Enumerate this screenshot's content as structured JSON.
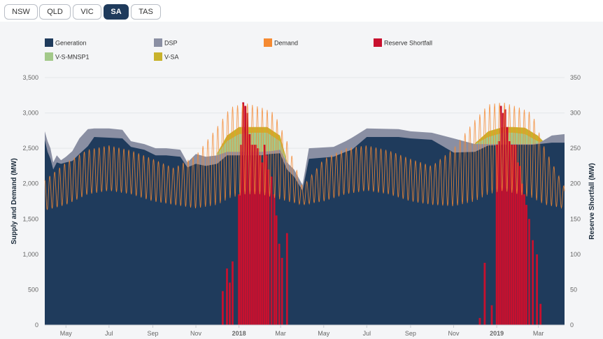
{
  "tabs": [
    {
      "label": "NSW",
      "active": false
    },
    {
      "label": "QLD",
      "active": false
    },
    {
      "label": "VIC",
      "active": false
    },
    {
      "label": "SA",
      "active": true
    },
    {
      "label": "TAS",
      "active": false
    }
  ],
  "colors": {
    "generation": "#1f3b5c",
    "dsp": "#8a8fa3",
    "demand": "#f58a32",
    "shortfall": "#c8102e",
    "vs_mnsp1": "#a3c98a",
    "vsa": "#c8b22c"
  },
  "chart_data": {
    "type": "area",
    "legend": [
      "Generation",
      "DSP",
      "Demand",
      "Reserve Shortfall",
      "V-S-MNSP1",
      "V-SA"
    ],
    "legend_position": "top-left",
    "ylabel": "Supply and Demand (MW)",
    "y2label": "Reserve Shortfall (MW)",
    "ylim": [
      0,
      3500
    ],
    "y2lim": [
      0,
      350
    ],
    "yticks": [
      "0",
      "500",
      "1,000",
      "1,500",
      "2,000",
      "2,500",
      "3,000",
      "3,500"
    ],
    "y2ticks": [
      "0",
      "50",
      "100",
      "150",
      "200",
      "250",
      "300",
      "350"
    ],
    "xlim": [
      "2017-04-01",
      "2019-04-07"
    ],
    "xticks": [
      {
        "date": "2017-05-01",
        "label": "May",
        "bold": false
      },
      {
        "date": "2017-07-01",
        "label": "Jul",
        "bold": false
      },
      {
        "date": "2017-09-01",
        "label": "Sep",
        "bold": false
      },
      {
        "date": "2017-11-01",
        "label": "Nov",
        "bold": false
      },
      {
        "date": "2018-01-01",
        "label": "2018",
        "bold": true
      },
      {
        "date": "2018-03-01",
        "label": "Mar",
        "bold": false
      },
      {
        "date": "2018-05-01",
        "label": "May",
        "bold": false
      },
      {
        "date": "2018-07-01",
        "label": "Jul",
        "bold": false
      },
      {
        "date": "2018-09-01",
        "label": "Sep",
        "bold": false
      },
      {
        "date": "2018-11-01",
        "label": "Nov",
        "bold": false
      },
      {
        "date": "2019-01-01",
        "label": "2019",
        "bold": true
      },
      {
        "date": "2019-03-01",
        "label": "Mar",
        "bold": false
      }
    ],
    "generation": [
      [
        "2017-04-01",
        2620
      ],
      [
        "2017-04-05",
        2450
      ],
      [
        "2017-04-09",
        2350
      ],
      [
        "2017-04-13",
        2200
      ],
      [
        "2017-04-18",
        2300
      ],
      [
        "2017-04-24",
        2280
      ],
      [
        "2017-05-01",
        2300
      ],
      [
        "2017-05-10",
        2320
      ],
      [
        "2017-05-20",
        2420
      ],
      [
        "2017-06-01",
        2530
      ],
      [
        "2017-06-10",
        2660
      ],
      [
        "2017-07-01",
        2650
      ],
      [
        "2017-07-20",
        2640
      ],
      [
        "2017-08-01",
        2520
      ],
      [
        "2017-08-20",
        2480
      ],
      [
        "2017-09-05",
        2400
      ],
      [
        "2017-09-20",
        2400
      ],
      [
        "2017-10-10",
        2380
      ],
      [
        "2017-10-20",
        2230
      ],
      [
        "2017-11-01",
        2280
      ],
      [
        "2017-11-15",
        2250
      ],
      [
        "2017-12-01",
        2280
      ],
      [
        "2017-12-15",
        2400
      ],
      [
        "2017-12-31",
        2400
      ],
      [
        "2018-02-01",
        2400
      ],
      [
        "2018-02-15",
        2420
      ],
      [
        "2018-02-28",
        2430
      ],
      [
        "2018-03-10",
        2200
      ],
      [
        "2018-03-20",
        2100
      ],
      [
        "2018-04-01",
        1900
      ],
      [
        "2018-04-10",
        2350
      ],
      [
        "2018-05-15",
        2380
      ],
      [
        "2018-06-01",
        2450
      ],
      [
        "2018-06-10",
        2480
      ],
      [
        "2018-07-01",
        2660
      ],
      [
        "2018-08-15",
        2660
      ],
      [
        "2018-09-01",
        2640
      ],
      [
        "2018-10-01",
        2620
      ],
      [
        "2018-11-01",
        2440
      ],
      [
        "2018-12-01",
        2450
      ],
      [
        "2018-12-20",
        2540
      ],
      [
        "2019-01-15",
        2550
      ],
      [
        "2019-02-01",
        2550
      ],
      [
        "2019-02-20",
        2550
      ],
      [
        "2019-03-01",
        2560
      ],
      [
        "2019-03-20",
        2580
      ],
      [
        "2019-04-07",
        2580
      ]
    ],
    "dsp": [
      [
        "2017-04-01",
        2740
      ],
      [
        "2017-04-05",
        2600
      ],
      [
        "2017-04-09",
        2500
      ],
      [
        "2017-04-13",
        2300
      ],
      [
        "2017-04-18",
        2400
      ],
      [
        "2017-04-24",
        2330
      ],
      [
        "2017-05-01",
        2380
      ],
      [
        "2017-05-10",
        2460
      ],
      [
        "2017-05-20",
        2640
      ],
      [
        "2017-06-01",
        2770
      ],
      [
        "2017-06-10",
        2780
      ],
      [
        "2017-07-01",
        2780
      ],
      [
        "2017-07-20",
        2760
      ],
      [
        "2017-08-01",
        2600
      ],
      [
        "2017-08-20",
        2560
      ],
      [
        "2017-09-05",
        2500
      ],
      [
        "2017-09-20",
        2500
      ],
      [
        "2017-10-10",
        2480
      ],
      [
        "2017-10-20",
        2300
      ],
      [
        "2017-11-01",
        2420
      ],
      [
        "2017-11-15",
        2380
      ],
      [
        "2017-12-01",
        2400
      ],
      [
        "2017-12-15",
        2450
      ],
      [
        "2017-12-31",
        2450
      ],
      [
        "2018-02-01",
        2450
      ],
      [
        "2018-02-15",
        2460
      ],
      [
        "2018-02-28",
        2480
      ],
      [
        "2018-03-10",
        2300
      ],
      [
        "2018-03-20",
        2200
      ],
      [
        "2018-04-01",
        1980
      ],
      [
        "2018-04-10",
        2500
      ],
      [
        "2018-05-15",
        2520
      ],
      [
        "2018-06-01",
        2600
      ],
      [
        "2018-06-10",
        2650
      ],
      [
        "2018-07-01",
        2780
      ],
      [
        "2018-08-15",
        2770
      ],
      [
        "2018-09-01",
        2740
      ],
      [
        "2018-10-01",
        2720
      ],
      [
        "2018-11-01",
        2640
      ],
      [
        "2018-12-01",
        2560
      ],
      [
        "2018-12-20",
        2560
      ],
      [
        "2019-01-15",
        2560
      ],
      [
        "2019-02-01",
        2560
      ],
      [
        "2019-02-20",
        2560
      ],
      [
        "2019-03-01",
        2570
      ],
      [
        "2019-03-20",
        2680
      ],
      [
        "2019-04-07",
        2700
      ]
    ],
    "vs_mnsp1": [
      [
        "2017-12-01",
        2420
      ],
      [
        "2017-12-15",
        2600
      ],
      [
        "2018-01-01",
        2700
      ],
      [
        "2018-01-20",
        2720
      ],
      [
        "2018-02-10",
        2720
      ],
      [
        "2018-02-28",
        2600
      ],
      [
        "2018-03-10",
        2300
      ],
      [
        "2018-12-01",
        2560
      ],
      [
        "2018-12-20",
        2660
      ],
      [
        "2019-01-10",
        2720
      ],
      [
        "2019-01-25",
        2720
      ],
      [
        "2019-02-10",
        2700
      ],
      [
        "2019-02-28",
        2600
      ],
      [
        "2019-03-10",
        2570
      ]
    ],
    "vsa": [
      [
        "2017-12-01",
        2430
      ],
      [
        "2017-12-15",
        2680
      ],
      [
        "2018-01-01",
        2800
      ],
      [
        "2018-01-20",
        2800
      ],
      [
        "2018-02-10",
        2800
      ],
      [
        "2018-02-28",
        2680
      ],
      [
        "2018-03-10",
        2320
      ],
      [
        "2018-12-01",
        2570
      ],
      [
        "2018-12-20",
        2740
      ],
      [
        "2019-01-10",
        2800
      ],
      [
        "2019-01-25",
        2800
      ],
      [
        "2019-02-10",
        2790
      ],
      [
        "2019-02-28",
        2680
      ],
      [
        "2019-03-10",
        2580
      ]
    ],
    "demand_envelope": [
      [
        "2017-04-01",
        1620,
        2050
      ],
      [
        "2017-05-01",
        1700,
        2300
      ],
      [
        "2017-06-01",
        1850,
        2480
      ],
      [
        "2017-07-01",
        1900,
        2540
      ],
      [
        "2017-08-01",
        1850,
        2470
      ],
      [
        "2017-09-01",
        1750,
        2350
      ],
      [
        "2017-10-01",
        1700,
        2220
      ],
      [
        "2017-11-01",
        1650,
        2400
      ],
      [
        "2017-12-01",
        1700,
        2800
      ],
      [
        "2017-12-20",
        1800,
        3080
      ],
      [
        "2018-01-10",
        1850,
        3140
      ],
      [
        "2018-02-01",
        1850,
        3080
      ],
      [
        "2018-02-20",
        1800,
        3000
      ],
      [
        "2018-03-10",
        1750,
        2600
      ],
      [
        "2018-04-01",
        1700,
        1950
      ],
      [
        "2018-05-01",
        1750,
        2350
      ],
      [
        "2018-06-01",
        1850,
        2500
      ],
      [
        "2018-07-01",
        1900,
        2540
      ],
      [
        "2018-08-01",
        1850,
        2470
      ],
      [
        "2018-09-01",
        1750,
        2350
      ],
      [
        "2018-10-01",
        1700,
        2250
      ],
      [
        "2018-11-01",
        1680,
        2500
      ],
      [
        "2018-12-01",
        1750,
        2900
      ],
      [
        "2018-12-20",
        1850,
        3120
      ],
      [
        "2019-01-10",
        1900,
        3150
      ],
      [
        "2019-02-01",
        1850,
        3080
      ],
      [
        "2019-02-20",
        1800,
        3000
      ],
      [
        "2019-03-10",
        1700,
        2500
      ],
      [
        "2019-04-07",
        1650,
        1950
      ]
    ],
    "demand_cycle_days": 7,
    "reserve_shortfall": [
      [
        "2017-12-09",
        48
      ],
      [
        "2017-12-15",
        80
      ],
      [
        "2017-12-19",
        60
      ],
      [
        "2017-12-23",
        90
      ],
      [
        "2017-12-27",
        0
      ],
      [
        "2018-01-01",
        185
      ],
      [
        "2018-01-04",
        255
      ],
      [
        "2018-01-07",
        315
      ],
      [
        "2018-01-10",
        310
      ],
      [
        "2018-01-13",
        300
      ],
      [
        "2018-01-16",
        270
      ],
      [
        "2018-01-19",
        255
      ],
      [
        "2018-01-22",
        255
      ],
      [
        "2018-01-25",
        255
      ],
      [
        "2018-01-28",
        250
      ],
      [
        "2018-01-31",
        240
      ],
      [
        "2018-02-03",
        230
      ],
      [
        "2018-02-06",
        255
      ],
      [
        "2018-02-09",
        240
      ],
      [
        "2018-02-12",
        220
      ],
      [
        "2018-02-16",
        210
      ],
      [
        "2018-02-20",
        185
      ],
      [
        "2018-02-23",
        155
      ],
      [
        "2018-02-27",
        115
      ],
      [
        "2018-03-03",
        95
      ],
      [
        "2018-03-10",
        130
      ],
      [
        "2018-12-08",
        10
      ],
      [
        "2018-12-15",
        88
      ],
      [
        "2018-12-25",
        28
      ],
      [
        "2019-01-01",
        255
      ],
      [
        "2019-01-04",
        260
      ],
      [
        "2019-01-07",
        310
      ],
      [
        "2019-01-10",
        300
      ],
      [
        "2019-01-13",
        305
      ],
      [
        "2019-01-16",
        280
      ],
      [
        "2019-01-19",
        260
      ],
      [
        "2019-01-22",
        255
      ],
      [
        "2019-01-25",
        255
      ],
      [
        "2019-01-28",
        255
      ],
      [
        "2019-01-31",
        230
      ],
      [
        "2019-02-03",
        225
      ],
      [
        "2019-02-06",
        200
      ],
      [
        "2019-02-09",
        185
      ],
      [
        "2019-02-12",
        170
      ],
      [
        "2019-02-16",
        150
      ],
      [
        "2019-02-21",
        120
      ],
      [
        "2019-02-27",
        100
      ],
      [
        "2019-03-04",
        30
      ]
    ]
  }
}
